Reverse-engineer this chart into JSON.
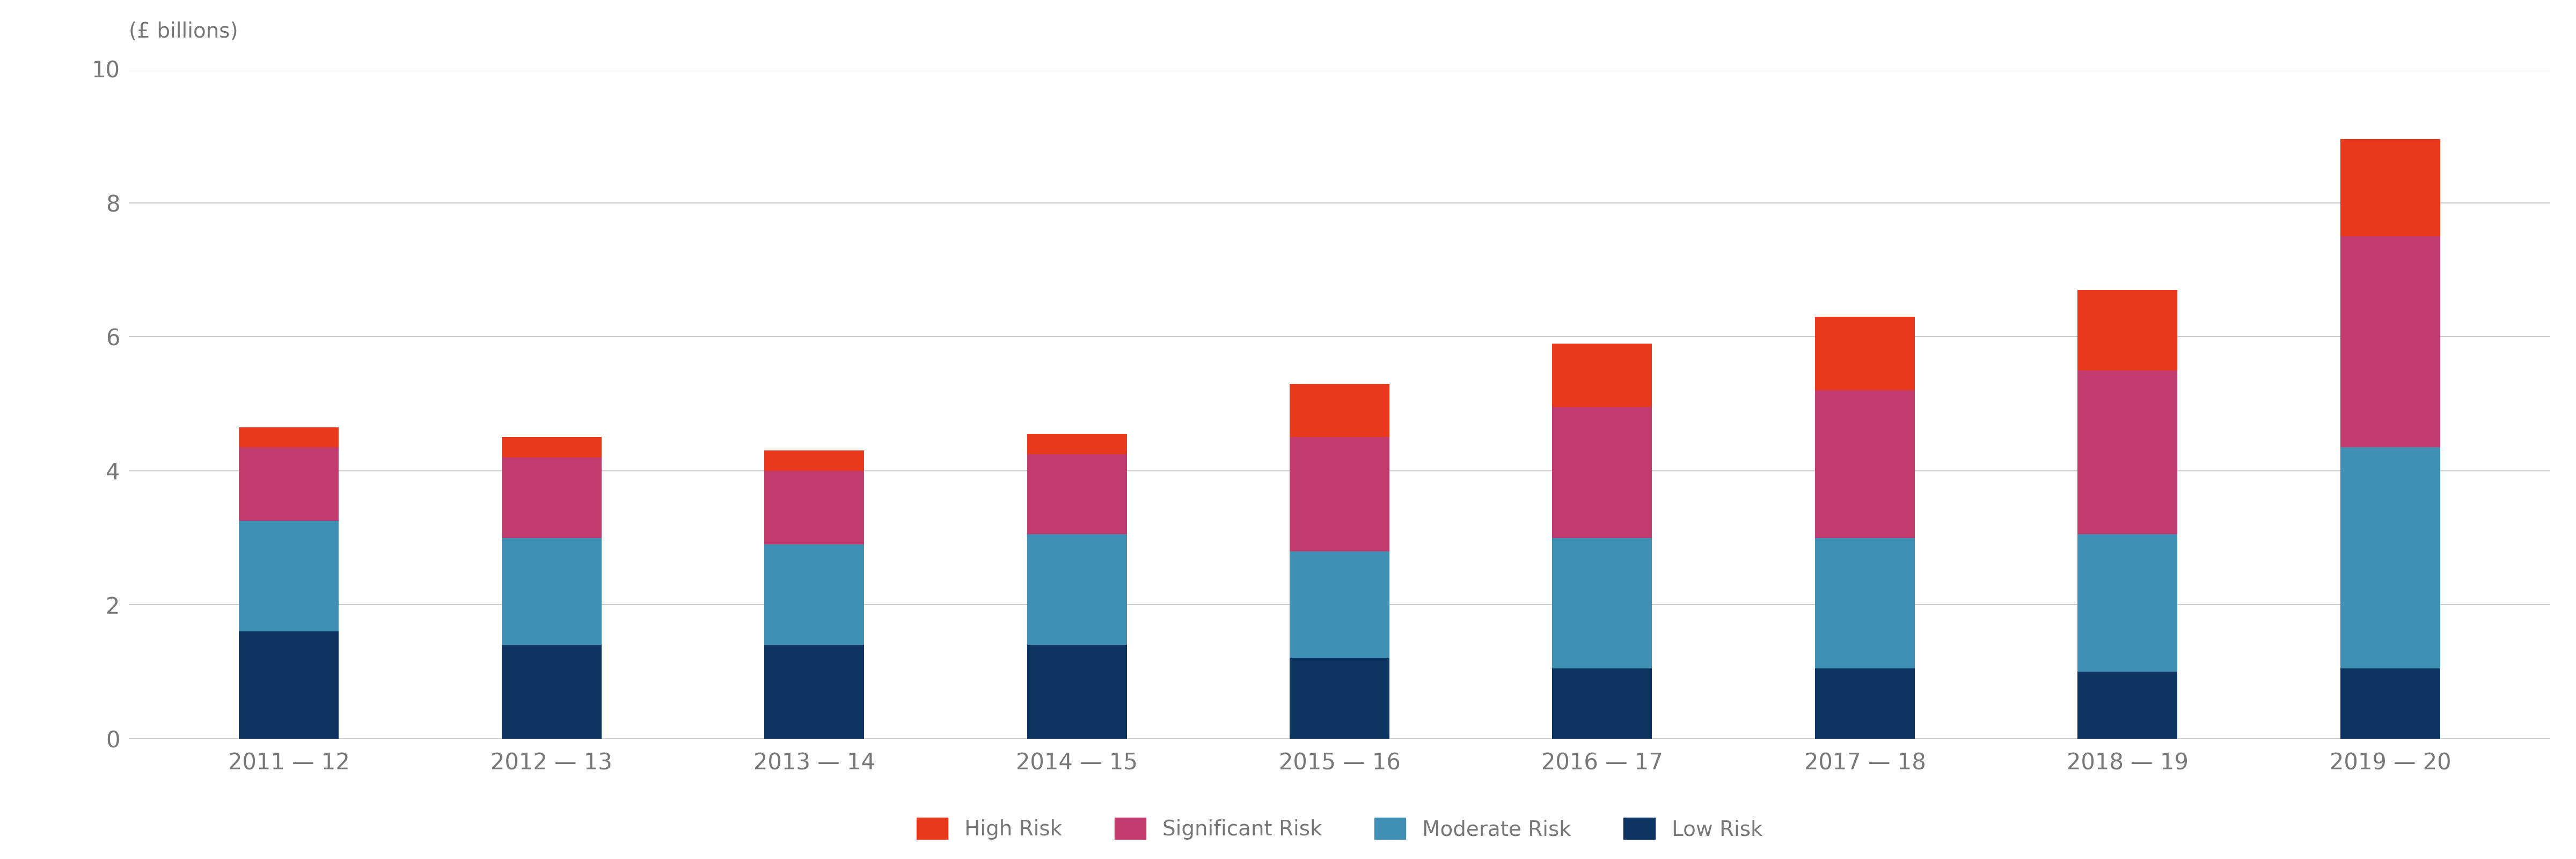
{
  "categories": [
    "2011 — 12",
    "2012 — 13",
    "2013 — 14",
    "2014 — 15",
    "2015 — 16",
    "2016 — 17",
    "2017 — 18",
    "2018 — 19",
    "2019 — 20"
  ],
  "low_risk": [
    1.6,
    1.4,
    1.4,
    1.4,
    1.2,
    1.05,
    1.05,
    1.0,
    1.05
  ],
  "moderate_risk": [
    1.65,
    1.6,
    1.5,
    1.65,
    1.6,
    1.95,
    1.95,
    2.05,
    3.3
  ],
  "significant_risk": [
    1.1,
    1.2,
    1.1,
    1.2,
    1.7,
    1.95,
    2.2,
    2.45,
    3.15
  ],
  "high_risk": [
    0.3,
    0.3,
    0.3,
    0.3,
    0.8,
    0.95,
    1.1,
    1.2,
    1.45
  ],
  "colors": {
    "low_risk": "#0d3461",
    "moderate_risk": "#4090b5",
    "significant_risk": "#c23b6e",
    "high_risk": "#e8391d"
  },
  "legend_labels": [
    "High Risk",
    "Significant Risk",
    "Moderate Risk",
    "Low Risk"
  ],
  "ylabel": "(£ billions)",
  "ylim": [
    0,
    10
  ],
  "yticks": [
    0,
    2,
    4,
    6,
    8,
    10
  ],
  "background_color": "#ffffff",
  "grid_color": "#cccccc",
  "tick_color": "#777777",
  "bar_width": 0.38
}
